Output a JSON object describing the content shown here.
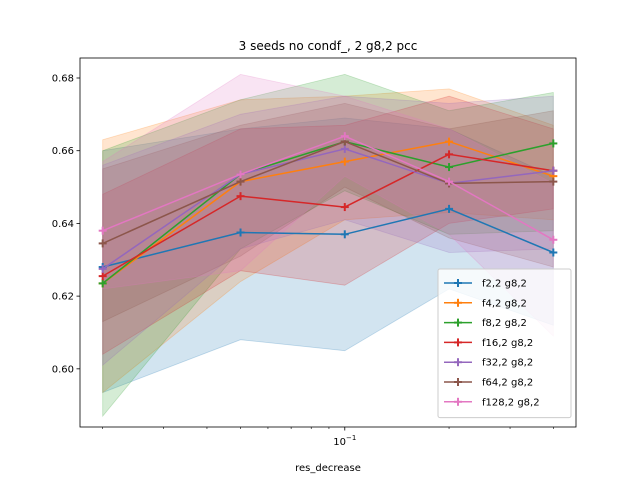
{
  "chart_data": {
    "type": "line",
    "title": "3 seeds no condf_, 2 g8,2 pcc",
    "xlabel": "res_decrease",
    "ylabel": "",
    "xscale": "log",
    "x": [
      0.02,
      0.05,
      0.1,
      0.2,
      0.4
    ],
    "xlim": [
      0.0172,
      0.4651
    ],
    "ylim": [
      0.584,
      0.6855
    ],
    "x_ticks": [
      {
        "value": 0.1,
        "label": "10^{-1}"
      }
    ],
    "y_ticks": [
      0.6,
      0.62,
      0.64,
      0.66,
      0.68
    ],
    "y_tick_labels": [
      "0.60",
      "0.62",
      "0.64",
      "0.66",
      "0.68"
    ],
    "grid": false,
    "legend_position": "lower-right",
    "series": [
      {
        "name": "f2,2 g8,2",
        "color": "#1f77b4",
        "values": [
          0.628,
          0.6375,
          0.637,
          0.644,
          0.632
        ],
        "lower": [
          0.5935,
          0.608,
          0.605,
          0.622,
          0.612
        ],
        "upper": [
          0.66,
          0.666,
          0.669,
          0.666,
          0.653
        ]
      },
      {
        "name": "f4,2 g8,2",
        "color": "#ff7f0e",
        "values": [
          0.6235,
          0.6515,
          0.657,
          0.6625,
          0.653
        ],
        "lower": [
          0.5935,
          0.624,
          0.641,
          0.643,
          0.641
        ],
        "upper": [
          0.663,
          0.674,
          0.675,
          0.677,
          0.667
        ]
      },
      {
        "name": "f8,2 g8,2",
        "color": "#2ca02c",
        "values": [
          0.6235,
          0.6535,
          0.6625,
          0.6555,
          0.662
        ],
        "lower": [
          0.587,
          0.633,
          0.649,
          0.637,
          0.638
        ],
        "upper": [
          0.66,
          0.674,
          0.681,
          0.671,
          0.676
        ]
      },
      {
        "name": "f16,2 g8,2",
        "color": "#d62728",
        "values": [
          0.6255,
          0.6475,
          0.6445,
          0.659,
          0.6545
        ],
        "lower": [
          0.604,
          0.627,
          0.623,
          0.64,
          0.644
        ],
        "upper": [
          0.648,
          0.666,
          0.667,
          0.675,
          0.666
        ]
      },
      {
        "name": "f32,2 g8,2",
        "color": "#9467bd",
        "values": [
          0.6275,
          0.6535,
          0.6605,
          0.651,
          0.6545
        ],
        "lower": [
          0.601,
          0.633,
          0.641,
          0.632,
          0.633
        ],
        "upper": [
          0.656,
          0.67,
          0.675,
          0.673,
          0.675
        ]
      },
      {
        "name": "f64,2 g8,2",
        "color": "#8c564b",
        "values": [
          0.6345,
          0.6515,
          0.6625,
          0.651,
          0.6515
        ],
        "lower": [
          0.613,
          0.631,
          0.65,
          0.636,
          0.628
        ],
        "upper": [
          0.655,
          0.667,
          0.673,
          0.666,
          0.671
        ]
      },
      {
        "name": "f128,2 g8,2",
        "color": "#e377c2",
        "values": [
          0.638,
          0.6535,
          0.664,
          0.6515,
          0.6355
        ],
        "lower": [
          0.622,
          0.627,
          0.653,
          0.637,
          0.609
        ],
        "upper": [
          0.657,
          0.681,
          0.675,
          0.666,
          0.651
        ]
      }
    ]
  }
}
